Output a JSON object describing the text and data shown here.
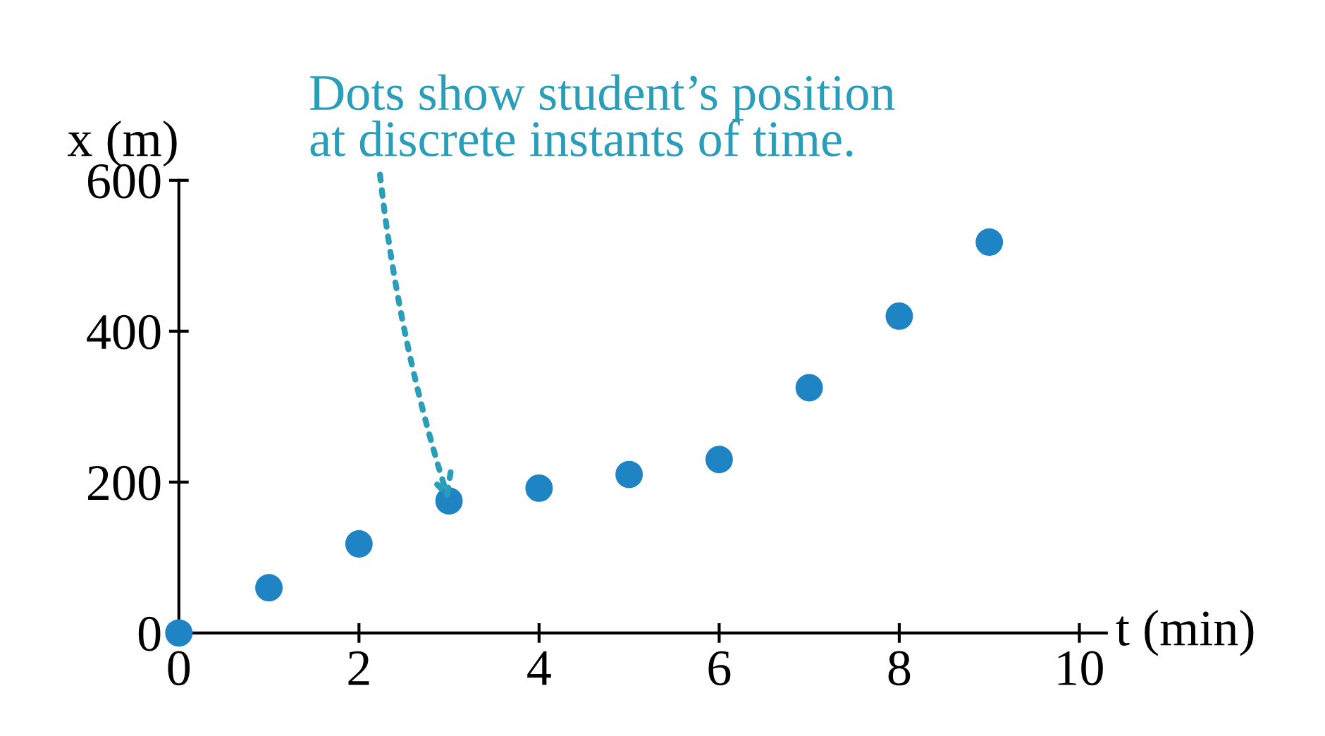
{
  "chart_data": {
    "type": "scatter",
    "xlabel": "t (min)",
    "ylabel": "x (m)",
    "x": [
      0,
      1,
      2,
      3,
      4,
      5,
      6,
      7,
      8,
      9
    ],
    "series": [
      {
        "color": "#1f84c4",
        "values": [
          0,
          60,
          118,
          175,
          192,
          210,
          230,
          325,
          420,
          518
        ]
      }
    ],
    "xlim": [
      0,
      10.3
    ],
    "ylim": [
      0,
      600
    ],
    "xticks": [
      0,
      2,
      4,
      6,
      8,
      10
    ],
    "yticks": [
      0,
      200,
      400,
      600
    ],
    "marker": "circle",
    "grid": false,
    "legend": false,
    "annotations": [
      {
        "text": "Dots show student’s position\nat discrete instants of time.",
        "x": 3,
        "y": 175
      }
    ]
  }
}
